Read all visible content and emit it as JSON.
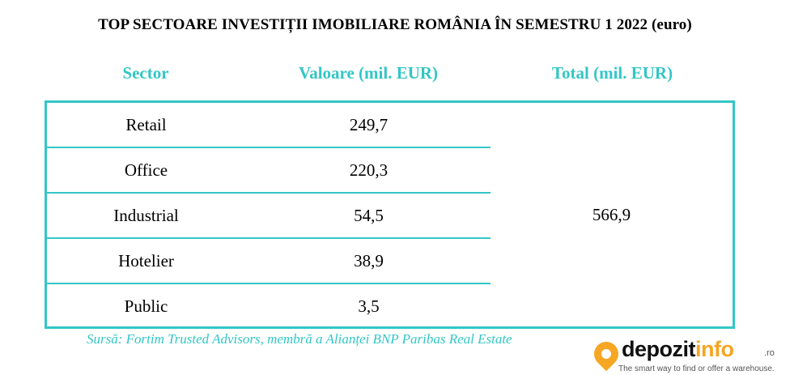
{
  "chart_data": {
    "type": "table",
    "title": "TOP SECTOARE INVESTIȚII IMOBILIARE ROMÂNIA ÎN SEMESTRU 1 2022 (euro)",
    "columns": [
      "Sector",
      "Valoare (mil. EUR)",
      "Total (mil. EUR)"
    ],
    "rows": [
      {
        "sector": "Retail",
        "value": "249,7"
      },
      {
        "sector": "Office",
        "value": "220,3"
      },
      {
        "sector": "Industrial",
        "value": "54,5"
      },
      {
        "sector": "Hotelier",
        "value": "38,9"
      },
      {
        "sector": "Public",
        "value": "3,5"
      }
    ],
    "total": "566,9",
    "source": "Sursă: Fortim Trusted Advisors, membră a Alianței BNP Paribas Real Estate"
  },
  "logo": {
    "word_part1": "depozit",
    "word_part2": "info",
    "suffix": ".ro",
    "tagline": "The smart way to find or offer a warehouse."
  },
  "colors": {
    "accent": "#33c6c6",
    "logo_orange": "#f5a623"
  }
}
